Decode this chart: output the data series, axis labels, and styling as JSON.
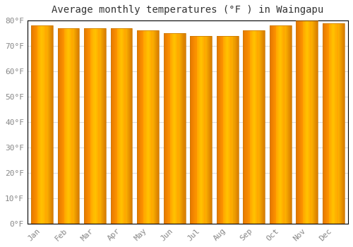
{
  "title": "Average monthly temperatures (°F ) in Waingapu",
  "months": [
    "Jan",
    "Feb",
    "Mar",
    "Apr",
    "May",
    "Jun",
    "Jul",
    "Aug",
    "Sep",
    "Oct",
    "Nov",
    "Dec"
  ],
  "values": [
    78,
    77,
    77,
    77,
    76,
    75,
    74,
    74,
    76,
    78,
    80,
    79
  ],
  "bar_color_left": "#FFB300",
  "bar_color_center": "#FFCC00",
  "bar_color_right": "#E8950A",
  "bar_edge_color": "#C87800",
  "ylim": [
    0,
    80
  ],
  "yticks": [
    0,
    10,
    20,
    30,
    40,
    50,
    60,
    70,
    80
  ],
  "background_color": "#FFFFFF",
  "plot_bg_color": "#FFFFFF",
  "grid_color": "#DDDDDD",
  "title_fontsize": 10,
  "tick_fontsize": 8,
  "tick_label_color": "#888888",
  "bar_width": 0.82
}
